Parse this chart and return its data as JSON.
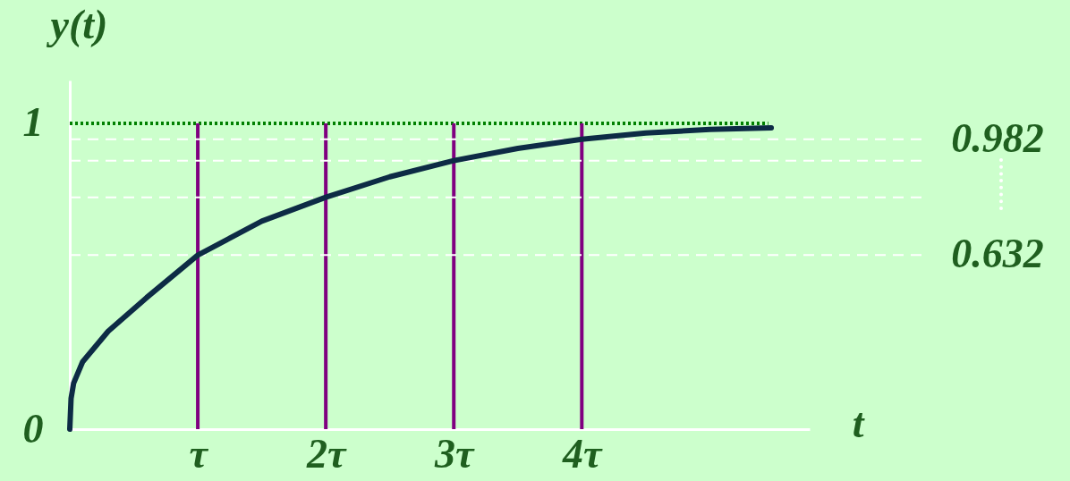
{
  "chart_data": {
    "type": "line",
    "xlabel": "t",
    "ylabel": "y(t)",
    "x": [
      0,
      0.01,
      0.03,
      0.1,
      0.3,
      0.6,
      1,
      1.5,
      2,
      2.5,
      3,
      3.5,
      4,
      4.5,
      5,
      5.48
    ],
    "series": [
      {
        "color": "#0d2b45",
        "values": [
          0,
          0.1,
          0.15,
          0.22,
          0.32,
          0.43,
          0.569,
          0.68,
          0.758,
          0.825,
          0.878,
          0.918,
          0.948,
          0.968,
          0.98,
          0.985
        ]
      }
    ],
    "xlim": [
      0,
      5.78
    ],
    "ylim": [
      0,
      1.14
    ],
    "xticks": [
      {
        "value": 1,
        "label": "τ"
      },
      {
        "value": 2,
        "label": "2τ"
      },
      {
        "value": 3,
        "label": "3τ"
      },
      {
        "value": 4,
        "label": "4τ"
      }
    ],
    "yticks": [
      0,
      1
    ],
    "ref_lines": [
      {
        "axis": "y",
        "value": 1,
        "color": "#008000",
        "line_style": "dotted"
      },
      {
        "axis": "x",
        "value": 1,
        "color": "#800080"
      },
      {
        "axis": "x",
        "value": 2,
        "color": "#800080"
      },
      {
        "axis": "x",
        "value": 3,
        "color": "#800080"
      },
      {
        "axis": "x",
        "value": 4,
        "color": "#800080"
      },
      {
        "axis": "y",
        "value": 0.569,
        "color": "#ffffff",
        "line_style": "dashed"
      },
      {
        "axis": "y",
        "value": 0.758,
        "color": "#ffffff",
        "line_style": "dashed"
      },
      {
        "axis": "y",
        "value": 0.878,
        "color": "#ffffff",
        "line_style": "dashed"
      },
      {
        "axis": "y",
        "value": 0.948,
        "color": "#ffffff",
        "line_style": "dashed"
      }
    ],
    "annotations": [
      "0.982",
      "0.632"
    ],
    "grid": false,
    "legend": false,
    "marker": "none",
    "line_style": "solid"
  }
}
